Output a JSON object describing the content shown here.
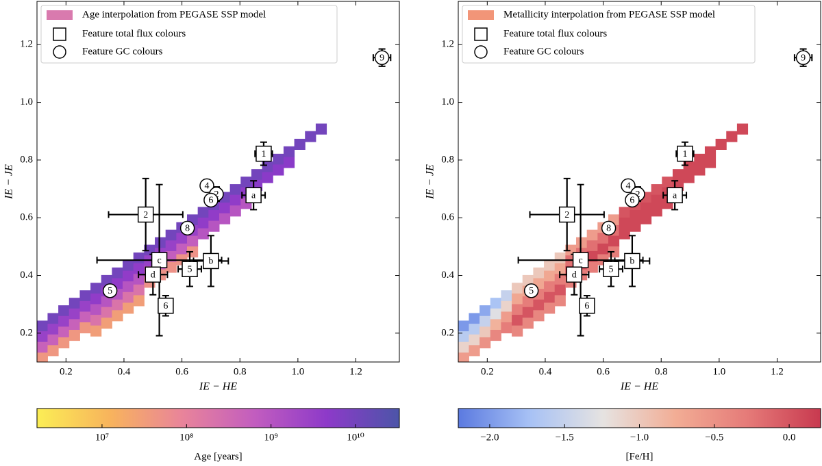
{
  "chart_data": [
    {
      "type": "heatmap",
      "legend": [
        "Age interpolation from PEGASE SSP model",
        "Feature total flux colours",
        "Feature GC colours"
      ],
      "legend_color": "#d97aae",
      "xlabel": "IE − HE",
      "ylabel": "IE − JE",
      "xlim": [
        0.1,
        1.35
      ],
      "ylim": [
        0.1,
        1.35
      ],
      "xticks": [
        0.2,
        0.4,
        0.6,
        0.8,
        {
          "value": 1,
          "label": "1.0"
        },
        1.2
      ],
      "yticks": [
        0.2,
        0.4,
        0.6,
        0.8,
        {
          "value": 1,
          "label": "1.0"
        },
        1.2
      ],
      "colorbar": {
        "label": "Age [years]",
        "log": true,
        "lim": [
          1700000.0,
          33000000000.0
        ],
        "ticks": [
          {
            "value": 10000000.0,
            "label": "10⁷"
          },
          {
            "value": 100000000.0,
            "label": "10⁸"
          },
          {
            "value": 1000000000.0,
            "label": "10⁹"
          },
          {
            "value": 10000000000.0,
            "label": "10¹⁰"
          }
        ],
        "colors": [
          "#fbee55",
          "#f8b45c",
          "#e9849a",
          "#c25dbf",
          "#8d3ac9",
          "#4c55a8"
        ]
      },
      "columns": [
        {
          "x": 0.118,
          "y": 0.225,
          "values": [
            10000000000.0,
            3000000000.0,
            500000000.0,
            40000000.0
          ]
        },
        {
          "x": 0.155,
          "y": 0.251,
          "values": [
            10000000000.0,
            3000000000.0,
            500000000.0,
            40000000.0
          ]
        },
        {
          "x": 0.192,
          "y": 0.278,
          "values": [
            10000000000.0,
            3000000000.0,
            500000000.0,
            40000000.0
          ]
        },
        {
          "x": 0.229,
          "y": 0.304,
          "values": [
            10000000000.0,
            3000000000.0,
            500000000.0,
            40000000.0
          ]
        },
        {
          "x": 0.266,
          "y": 0.33,
          "values": [
            10000000000.0,
            3000000000.0,
            500000000.0,
            40000000.0
          ]
        },
        {
          "x": 0.303,
          "y": 0.356,
          "values": [
            10000000000.0,
            4000000000.0,
            1000000000.0,
            200000000.0,
            30000000.0
          ]
        },
        {
          "x": 0.34,
          "y": 0.383,
          "values": [
            10000000000.0,
            4000000000.0,
            1000000000.0,
            200000000.0,
            30000000.0
          ]
        },
        {
          "x": 0.377,
          "y": 0.409,
          "values": [
            10000000000.0,
            4000000000.0,
            1000000000.0,
            200000000.0,
            30000000.0
          ]
        },
        {
          "x": 0.414,
          "y": 0.435,
          "values": [
            10000000000.0,
            4000000000.0,
            1000000000.0,
            200000000.0,
            30000000.0
          ]
        },
        {
          "x": 0.451,
          "y": 0.461,
          "values": [
            10000000000.0,
            4000000000.0,
            1000000000.0,
            200000000.0,
            30000000.0
          ]
        },
        {
          "x": 0.488,
          "y": 0.488,
          "values": [
            10000000000.0,
            3000000000.0,
            600000000.0,
            50000000.0
          ]
        },
        {
          "x": 0.525,
          "y": 0.514,
          "values": [
            10000000000.0,
            3000000000.0,
            600000000.0,
            50000000.0
          ]
        },
        {
          "x": 0.562,
          "y": 0.54,
          "values": [
            10000000000.0,
            3000000000.0,
            600000000.0,
            50000000.0
          ]
        },
        {
          "x": 0.599,
          "y": 0.566,
          "values": [
            10000000000.0,
            3000000000.0,
            600000000.0,
            50000000.0
          ]
        },
        {
          "x": 0.636,
          "y": 0.593,
          "values": [
            10000000000.0,
            3000000000.0,
            600000000.0,
            50000000.0
          ]
        },
        {
          "x": 0.673,
          "y": 0.619,
          "values": [
            10000000000.0,
            4000000000.0,
            1000000000.0
          ]
        },
        {
          "x": 0.71,
          "y": 0.645,
          "values": [
            10000000000.0,
            4000000000.0,
            1000000000.0
          ]
        },
        {
          "x": 0.747,
          "y": 0.671,
          "values": [
            10000000000.0,
            4000000000.0,
            1000000000.0
          ]
        },
        {
          "x": 0.784,
          "y": 0.698,
          "values": [
            10000000000.0,
            4000000000.0,
            1000000000.0
          ]
        },
        {
          "x": 0.821,
          "y": 0.724,
          "values": [
            10000000000.0,
            4000000000.0,
            1000000000.0
          ]
        },
        {
          "x": 0.858,
          "y": 0.75,
          "values": [
            10000000000.0,
            5000000000.0
          ]
        },
        {
          "x": 0.895,
          "y": 0.777,
          "values": [
            10000000000.0,
            5000000000.0
          ]
        },
        {
          "x": 0.932,
          "y": 0.803,
          "values": [
            10000000000.0,
            5000000000.0
          ]
        },
        {
          "x": 0.969,
          "y": 0.829,
          "values": [
            10000000000.0,
            5000000000.0
          ]
        },
        {
          "x": 1.006,
          "y": 0.855,
          "values": [
            10000000000.0
          ]
        },
        {
          "x": 1.043,
          "y": 0.882,
          "values": [
            10000000000.0
          ]
        },
        {
          "x": 1.08,
          "y": 0.908,
          "values": [
            10000000000.0
          ]
        }
      ],
      "features": [
        {
          "label": "1",
          "x": 0.882,
          "y": 0.822,
          "xerr": 0.03,
          "yerr": 0.04
        },
        {
          "label": "a",
          "x": 0.847,
          "y": 0.678,
          "xerr": 0.04,
          "yerr": 0.05
        },
        {
          "label": "2",
          "x": 0.475,
          "y": 0.611,
          "xerr": 0.128,
          "yerr": 0.125
        },
        {
          "label": "c",
          "x": 0.522,
          "y": 0.453,
          "xerr": 0.215,
          "yerr": 0.262
        },
        {
          "label": "b",
          "x": 0.7,
          "y": 0.45,
          "xerr": 0.06,
          "yerr": 0.088
        },
        {
          "label": "d",
          "x": 0.5,
          "y": 0.403,
          "xerr": 0.05,
          "yerr": 0.07
        },
        {
          "label": "5",
          "x": 0.627,
          "y": 0.422,
          "xerr": 0.04,
          "yerr": 0.06
        },
        {
          "label": "6",
          "x": 0.544,
          "y": 0.295,
          "xerr": 0.015,
          "yerr": 0.035
        }
      ],
      "gcs": [
        {
          "label": "4",
          "x": 0.686,
          "y": 0.711
        },
        {
          "label": "2",
          "x": 0.719,
          "y": 0.682,
          "xerr": 0.02,
          "yerr": 0.025
        },
        {
          "label": "6",
          "x": 0.7,
          "y": 0.661
        },
        {
          "label": "8",
          "x": 0.619,
          "y": 0.564
        },
        {
          "label": "5",
          "x": 0.352,
          "y": 0.347
        },
        {
          "label": "9",
          "x": 1.29,
          "y": 1.155,
          "xerr": 0.03,
          "yerr": 0.03
        }
      ]
    },
    {
      "type": "heatmap",
      "legend": [
        "Metallicity interpolation from PEGASE SSP model",
        "Feature total flux colours",
        "Feature GC colours"
      ],
      "legend_color": "#f29578",
      "xlabel": "IE − HE",
      "ylabel": "IE − JE",
      "xlim": [
        0.1,
        1.35
      ],
      "ylim": [
        0.1,
        1.35
      ],
      "xticks": [
        0.2,
        0.4,
        0.6,
        0.8,
        {
          "value": 1,
          "label": "1.0"
        },
        1.2
      ],
      "yticks": [
        0.2,
        0.4,
        0.6,
        0.8,
        {
          "value": 1,
          "label": "1.0"
        },
        1.2
      ],
      "colorbar": {
        "label": "[Fe/H]",
        "log": false,
        "lim": [
          -2.21,
          0.21
        ],
        "ticks": [
          {
            "value": -2,
            "label": "−2.0"
          },
          {
            "value": -1.5,
            "label": "−1.5"
          },
          {
            "value": -1,
            "label": "−1.0"
          },
          {
            "value": -0.5,
            "label": "−0.5"
          },
          {
            "value": 0,
            "label": "0.0"
          }
        ],
        "colors": [
          "#5b7ae0",
          "#a8c2f5",
          "#e6e3e1",
          "#f2ad95",
          "#e57a78",
          "#c8394f"
        ]
      },
      "columns": [
        {
          "x": 0.118,
          "y": 0.225,
          "values": [
            -2.0,
            -1.6,
            -1.1,
            -0.6
          ]
        },
        {
          "x": 0.155,
          "y": 0.251,
          "values": [
            -2.0,
            -1.6,
            -1.1,
            -0.6
          ]
        },
        {
          "x": 0.192,
          "y": 0.278,
          "values": [
            -1.9,
            -1.5,
            -1.0,
            -0.5
          ]
        },
        {
          "x": 0.229,
          "y": 0.304,
          "values": [
            -1.7,
            -1.3,
            -0.8,
            -0.4
          ]
        },
        {
          "x": 0.266,
          "y": 0.33,
          "values": [
            -1.5,
            -1.1,
            -0.6,
            -0.3
          ]
        },
        {
          "x": 0.303,
          "y": 0.356,
          "values": [
            -1.0,
            -0.7,
            -0.3,
            0.0,
            -0.4
          ]
        },
        {
          "x": 0.34,
          "y": 0.383,
          "values": [
            -1.0,
            -0.7,
            -0.3,
            0.0,
            -0.4
          ]
        },
        {
          "x": 0.377,
          "y": 0.409,
          "values": [
            -1.0,
            -0.7,
            -0.3,
            0.0,
            -0.4
          ]
        },
        {
          "x": 0.414,
          "y": 0.435,
          "values": [
            -1.0,
            -0.7,
            -0.3,
            0.0,
            -0.4
          ]
        },
        {
          "x": 0.451,
          "y": 0.461,
          "values": [
            -1.0,
            -0.7,
            -0.3,
            0.0,
            -0.4
          ]
        },
        {
          "x": 0.488,
          "y": 0.488,
          "values": [
            -0.6,
            -0.2,
            0.1,
            -0.3
          ]
        },
        {
          "x": 0.525,
          "y": 0.514,
          "values": [
            -0.6,
            -0.2,
            0.1,
            -0.3
          ]
        },
        {
          "x": 0.562,
          "y": 0.54,
          "values": [
            -0.6,
            -0.2,
            0.1,
            -0.3
          ]
        },
        {
          "x": 0.599,
          "y": 0.566,
          "values": [
            -0.6,
            -0.2,
            0.1,
            -0.3
          ]
        },
        {
          "x": 0.636,
          "y": 0.593,
          "values": [
            -0.6,
            -0.2,
            0.1,
            -0.3
          ]
        },
        {
          "x": 0.673,
          "y": 0.619,
          "values": [
            0.0,
            0.1,
            0.1
          ]
        },
        {
          "x": 0.71,
          "y": 0.645,
          "values": [
            0.0,
            0.1,
            0.1
          ]
        },
        {
          "x": 0.747,
          "y": 0.671,
          "values": [
            0.0,
            0.1,
            0.1
          ]
        },
        {
          "x": 0.784,
          "y": 0.698,
          "values": [
            0.0,
            0.1,
            0.1
          ]
        },
        {
          "x": 0.821,
          "y": 0.724,
          "values": [
            0.0,
            0.1,
            0.1
          ]
        },
        {
          "x": 0.858,
          "y": 0.75,
          "values": [
            0.1,
            0.1
          ]
        },
        {
          "x": 0.895,
          "y": 0.777,
          "values": [
            0.1,
            0.1
          ]
        },
        {
          "x": 0.932,
          "y": 0.803,
          "values": [
            0.1,
            0.1
          ]
        },
        {
          "x": 0.969,
          "y": 0.829,
          "values": [
            0.1,
            0.1
          ]
        },
        {
          "x": 1.006,
          "y": 0.855,
          "values": [
            0.1
          ]
        },
        {
          "x": 1.043,
          "y": 0.882,
          "values": [
            0.1
          ]
        },
        {
          "x": 1.08,
          "y": 0.908,
          "values": [
            0.1
          ]
        }
      ],
      "features": [
        {
          "label": "1",
          "x": 0.882,
          "y": 0.822,
          "xerr": 0.03,
          "yerr": 0.04
        },
        {
          "label": "a",
          "x": 0.847,
          "y": 0.678,
          "xerr": 0.04,
          "yerr": 0.05
        },
        {
          "label": "2",
          "x": 0.475,
          "y": 0.611,
          "xerr": 0.128,
          "yerr": 0.125
        },
        {
          "label": "c",
          "x": 0.522,
          "y": 0.453,
          "xerr": 0.215,
          "yerr": 0.262
        },
        {
          "label": "b",
          "x": 0.7,
          "y": 0.45,
          "xerr": 0.06,
          "yerr": 0.088
        },
        {
          "label": "d",
          "x": 0.5,
          "y": 0.403,
          "xerr": 0.05,
          "yerr": 0.07
        },
        {
          "label": "5",
          "x": 0.627,
          "y": 0.422,
          "xerr": 0.04,
          "yerr": 0.06
        },
        {
          "label": "6",
          "x": 0.544,
          "y": 0.295,
          "xerr": 0.015,
          "yerr": 0.035
        }
      ],
      "gcs": [
        {
          "label": "4",
          "x": 0.686,
          "y": 0.711
        },
        {
          "label": "2",
          "x": 0.719,
          "y": 0.682,
          "xerr": 0.02,
          "yerr": 0.025
        },
        {
          "label": "6",
          "x": 0.7,
          "y": 0.661
        },
        {
          "label": "8",
          "x": 0.619,
          "y": 0.564
        },
        {
          "label": "5",
          "x": 0.352,
          "y": 0.347
        },
        {
          "label": "9",
          "x": 1.29,
          "y": 1.155,
          "xerr": 0.03,
          "yerr": 0.03
        }
      ]
    }
  ]
}
